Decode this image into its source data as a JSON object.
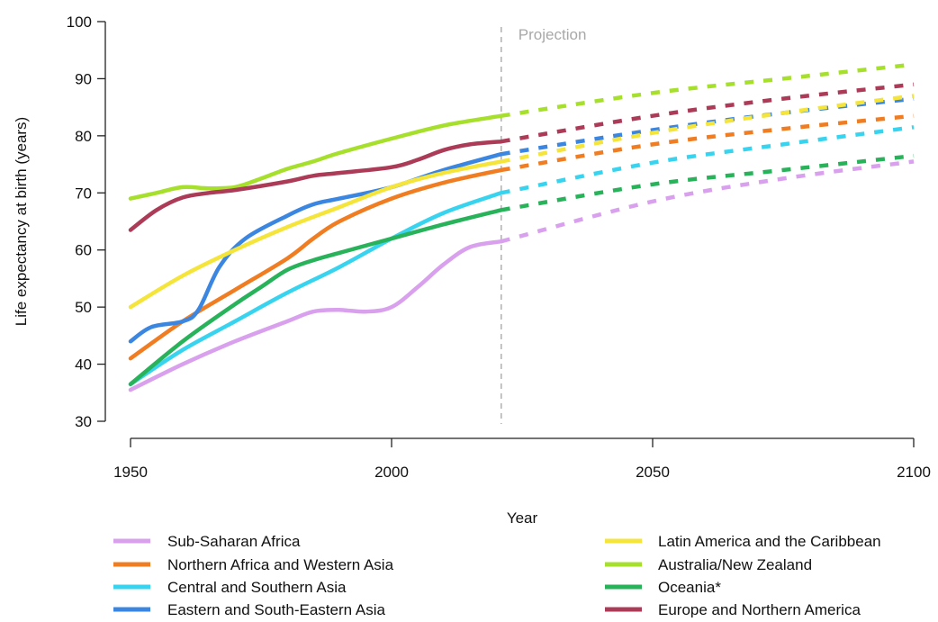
{
  "chart_data": {
    "type": "line",
    "title": "",
    "xlabel": "Year",
    "ylabel": "Life expectancy at birth (years)",
    "xlim": [
      1950,
      2100
    ],
    "ylim": [
      30,
      100
    ],
    "x_ticks": [
      1950,
      2000,
      2050,
      2100
    ],
    "y_ticks": [
      30,
      40,
      50,
      60,
      70,
      80,
      90,
      100
    ],
    "projection_start": 2021,
    "projection_label": "Projection",
    "grid": false,
    "legend_position": "bottom",
    "series": [
      {
        "name": "Sub-Saharan Africa",
        "color": "#d9a0ee",
        "observed": [
          [
            1950,
            35.5
          ],
          [
            1960,
            40
          ],
          [
            1970,
            44
          ],
          [
            1980,
            47.5
          ],
          [
            1985,
            49.2
          ],
          [
            1990,
            49.5
          ],
          [
            1995,
            49.2
          ],
          [
            2000,
            50
          ],
          [
            2005,
            53.5
          ],
          [
            2010,
            57.5
          ],
          [
            2015,
            60.5
          ],
          [
            2021,
            61.5
          ]
        ],
        "projected": [
          [
            2021,
            61.5
          ],
          [
            2050,
            68.5
          ],
          [
            2075,
            72.5
          ],
          [
            2100,
            75.5
          ]
        ]
      },
      {
        "name": "Northern Africa and Western Asia",
        "color": "#f07d22",
        "observed": [
          [
            1950,
            41
          ],
          [
            1960,
            47.5
          ],
          [
            1970,
            53
          ],
          [
            1980,
            58.5
          ],
          [
            1985,
            62
          ],
          [
            1990,
            65
          ],
          [
            2000,
            69
          ],
          [
            2010,
            71.8
          ],
          [
            2021,
            74
          ]
        ],
        "projected": [
          [
            2021,
            74
          ],
          [
            2050,
            78.5
          ],
          [
            2075,
            81.2
          ],
          [
            2100,
            83.5
          ]
        ]
      },
      {
        "name": "Central and Southern Asia",
        "color": "#38d4ef",
        "observed": [
          [
            1950,
            36.5
          ],
          [
            1960,
            42.5
          ],
          [
            1970,
            47.5
          ],
          [
            1980,
            52.5
          ],
          [
            1990,
            57
          ],
          [
            2000,
            62
          ],
          [
            2010,
            66.5
          ],
          [
            2021,
            70
          ]
        ],
        "projected": [
          [
            2021,
            70
          ],
          [
            2050,
            75.3
          ],
          [
            2075,
            78.5
          ],
          [
            2100,
            81.5
          ]
        ]
      },
      {
        "name": "Eastern and South-Eastern Asia",
        "color": "#3a86e0",
        "observed": [
          [
            1950,
            44
          ],
          [
            1954,
            46.5
          ],
          [
            1960,
            47.5
          ],
          [
            1963,
            49.5
          ],
          [
            1967,
            57
          ],
          [
            1972,
            62
          ],
          [
            1980,
            66
          ],
          [
            1985,
            68
          ],
          [
            1990,
            69
          ],
          [
            2000,
            71
          ],
          [
            2010,
            74
          ],
          [
            2021,
            76.8
          ]
        ],
        "projected": [
          [
            2021,
            76.8
          ],
          [
            2050,
            81
          ],
          [
            2075,
            84
          ],
          [
            2100,
            86.5
          ]
        ]
      },
      {
        "name": "Latin America and the Caribbean",
        "color": "#f5e43a",
        "observed": [
          [
            1950,
            50
          ],
          [
            1960,
            55.5
          ],
          [
            1970,
            60
          ],
          [
            1980,
            64
          ],
          [
            1990,
            67.5
          ],
          [
            2000,
            71
          ],
          [
            2010,
            73.5
          ],
          [
            2021,
            75.5
          ]
        ],
        "projected": [
          [
            2021,
            75.5
          ],
          [
            2050,
            80.5
          ],
          [
            2075,
            84
          ],
          [
            2100,
            87
          ]
        ]
      },
      {
        "name": "Australia/New Zealand",
        "color": "#a6df2c",
        "observed": [
          [
            1950,
            69
          ],
          [
            1955,
            70
          ],
          [
            1960,
            71
          ],
          [
            1965,
            70.8
          ],
          [
            1970,
            71
          ],
          [
            1975,
            72.5
          ],
          [
            1980,
            74.2
          ],
          [
            1985,
            75.5
          ],
          [
            1990,
            77
          ],
          [
            2000,
            79.5
          ],
          [
            2010,
            81.8
          ],
          [
            2021,
            83.5
          ]
        ],
        "projected": [
          [
            2021,
            83.5
          ],
          [
            2050,
            87.5
          ],
          [
            2075,
            90
          ],
          [
            2100,
            92.5
          ]
        ]
      },
      {
        "name": "Oceania*",
        "color": "#28b25a",
        "observed": [
          [
            1950,
            36.5
          ],
          [
            1960,
            44
          ],
          [
            1970,
            50.5
          ],
          [
            1975,
            53.5
          ],
          [
            1980,
            56.5
          ],
          [
            1985,
            58.2
          ],
          [
            1990,
            59.5
          ],
          [
            2000,
            62
          ],
          [
            2010,
            64.5
          ],
          [
            2021,
            67
          ]
        ],
        "projected": [
          [
            2021,
            67
          ],
          [
            2050,
            71.5
          ],
          [
            2075,
            74
          ],
          [
            2100,
            76.5
          ]
        ]
      },
      {
        "name": "Europe and Northern America",
        "color": "#ab3b57",
        "observed": [
          [
            1950,
            63.5
          ],
          [
            1955,
            67
          ],
          [
            1960,
            69.2
          ],
          [
            1965,
            70
          ],
          [
            1970,
            70.5
          ],
          [
            1980,
            72
          ],
          [
            1985,
            73
          ],
          [
            1990,
            73.5
          ],
          [
            2000,
            74.5
          ],
          [
            2005,
            75.8
          ],
          [
            2010,
            77.5
          ],
          [
            2015,
            78.5
          ],
          [
            2021,
            79
          ]
        ],
        "projected": [
          [
            2021,
            79
          ],
          [
            2050,
            83.5
          ],
          [
            2075,
            86.5
          ],
          [
            2100,
            89
          ]
        ]
      }
    ]
  }
}
